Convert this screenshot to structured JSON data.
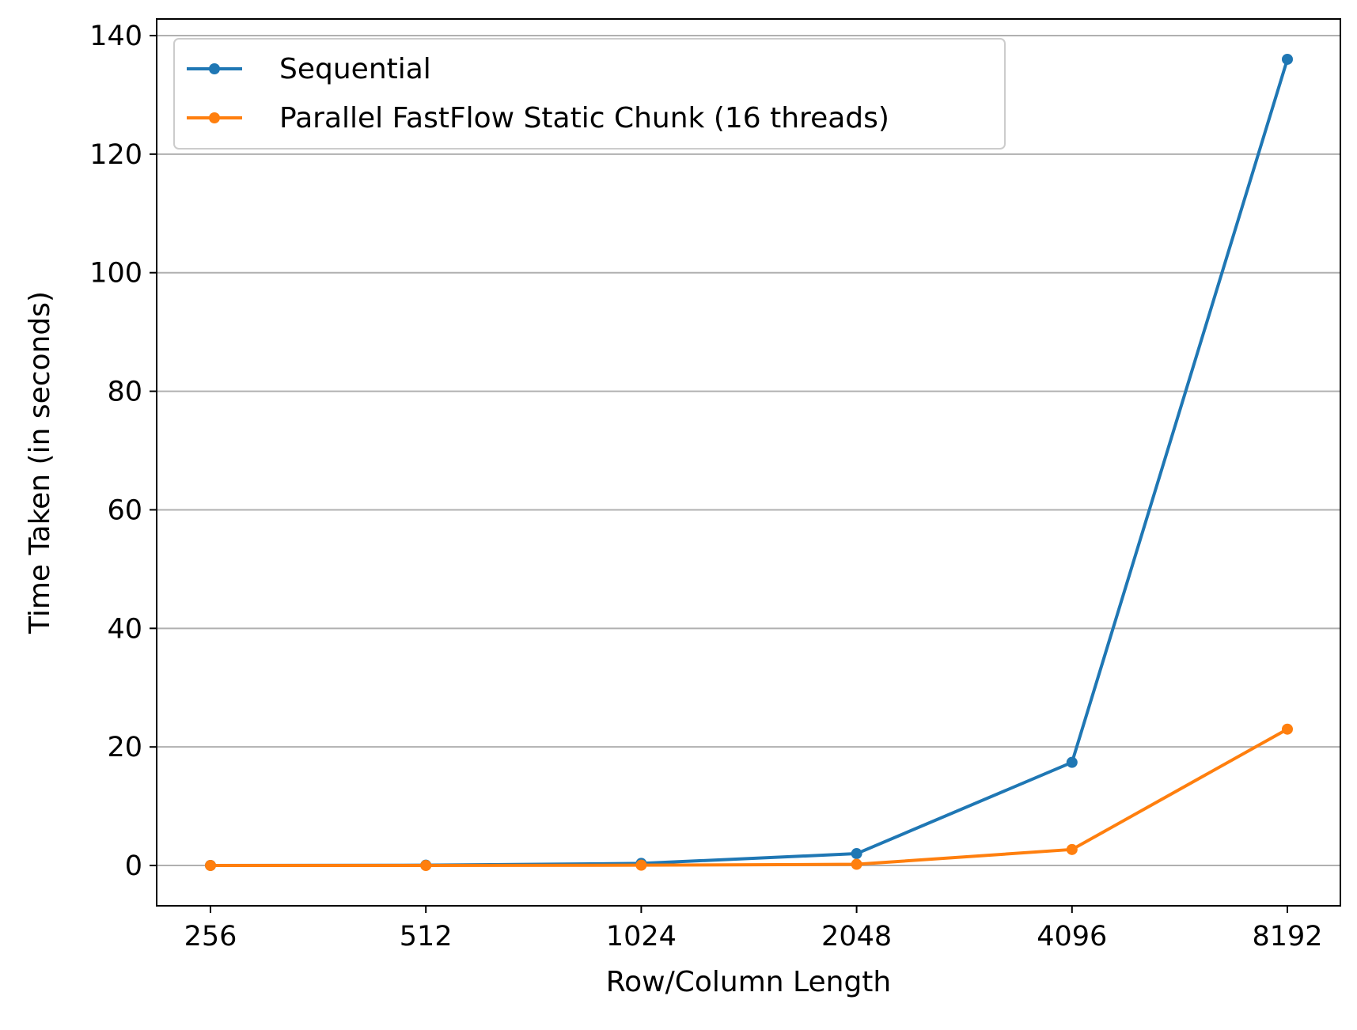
{
  "chart_data": {
    "type": "line",
    "title": "",
    "xlabel": "Row/Column Length",
    "ylabel": "Time Taken (in seconds)",
    "x": [
      "256",
      "512",
      "1024",
      "2048",
      "4096",
      "8192"
    ],
    "x_scale": "categorical",
    "yticks": [
      0,
      20,
      40,
      60,
      80,
      100,
      120,
      140
    ],
    "ylim": [
      -6.8,
      142.8
    ],
    "grid": "y-major",
    "legend": "top-left",
    "series": [
      {
        "name": "Sequential",
        "color": "#1f77b4",
        "marker": "circle",
        "values": [
          0.01,
          0.05,
          0.35,
          2.0,
          17.4,
          136.0
        ]
      },
      {
        "name": "Parallel FastFlow Static Chunk (16 threads)",
        "color": "#ff7f0e",
        "marker": "circle",
        "values": [
          0.0,
          0.0,
          0.05,
          0.2,
          2.7,
          23.0
        ]
      }
    ]
  }
}
